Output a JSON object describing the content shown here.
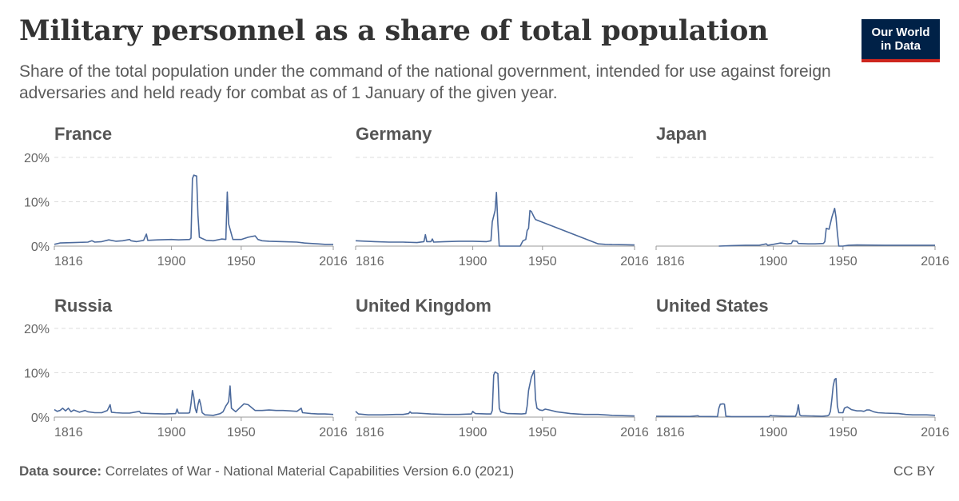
{
  "header": {
    "title": "Military personnel as a share of total population",
    "subtitle": "Share of the total population under the command of the national government, intended for use against foreign adversaries and held ready for combat as of 1 January of the given year."
  },
  "logo": {
    "line1": "Our World",
    "line2": "in Data"
  },
  "footer": {
    "source_label": "Data source:",
    "source_text": "Correlates of War - National Material Capabilities Version 6.0 (2021)",
    "license": "CC BY"
  },
  "colors": {
    "line": "#4c6a9c",
    "grid": "#dddddd",
    "axis": "#999999",
    "logo_bg": "#002147",
    "logo_accent": "#ce261e"
  },
  "chart_data": {
    "type": "line",
    "xlim": [
      1816,
      2016
    ],
    "ylim": [
      0,
      20
    ],
    "x_ticks": [
      "1816",
      "1900",
      "1950",
      "2016"
    ],
    "y_ticks": [
      "0%",
      "10%",
      "20%"
    ],
    "grid": true,
    "panels": [
      {
        "name": "France",
        "points": [
          [
            1816,
            0.4
          ],
          [
            1820,
            0.7
          ],
          [
            1830,
            0.8
          ],
          [
            1840,
            0.9
          ],
          [
            1843,
            1.2
          ],
          [
            1845,
            0.9
          ],
          [
            1850,
            1.0
          ],
          [
            1855,
            1.4
          ],
          [
            1860,
            1.1
          ],
          [
            1865,
            1.2
          ],
          [
            1870,
            1.5
          ],
          [
            1871,
            1.2
          ],
          [
            1875,
            1.0
          ],
          [
            1880,
            1.3
          ],
          [
            1882,
            2.7
          ],
          [
            1883,
            1.3
          ],
          [
            1890,
            1.4
          ],
          [
            1900,
            1.5
          ],
          [
            1905,
            1.4
          ],
          [
            1913,
            1.5
          ],
          [
            1914,
            1.8
          ],
          [
            1915,
            15.2
          ],
          [
            1916,
            16.0
          ],
          [
            1918,
            15.8
          ],
          [
            1919,
            7.0
          ],
          [
            1920,
            2.0
          ],
          [
            1925,
            1.3
          ],
          [
            1930,
            1.2
          ],
          [
            1936,
            1.6
          ],
          [
            1939,
            1.5
          ],
          [
            1940,
            12.2
          ],
          [
            1941,
            5.0
          ],
          [
            1944,
            1.5
          ],
          [
            1950,
            1.5
          ],
          [
            1955,
            2.0
          ],
          [
            1960,
            2.3
          ],
          [
            1962,
            1.5
          ],
          [
            1965,
            1.2
          ],
          [
            1970,
            1.1
          ],
          [
            1980,
            1.0
          ],
          [
            1990,
            0.9
          ],
          [
            1995,
            0.7
          ],
          [
            2000,
            0.6
          ],
          [
            2005,
            0.5
          ],
          [
            2010,
            0.4
          ],
          [
            2016,
            0.4
          ]
        ]
      },
      {
        "name": "Germany",
        "points": [
          [
            1816,
            1.2
          ],
          [
            1830,
            1.0
          ],
          [
            1840,
            0.9
          ],
          [
            1850,
            0.9
          ],
          [
            1860,
            0.8
          ],
          [
            1865,
            1.0
          ],
          [
            1866,
            2.6
          ],
          [
            1867,
            1.0
          ],
          [
            1870,
            1.0
          ],
          [
            1871,
            1.6
          ],
          [
            1872,
            0.9
          ],
          [
            1880,
            1.0
          ],
          [
            1890,
            1.1
          ],
          [
            1900,
            1.1
          ],
          [
            1910,
            1.0
          ],
          [
            1913,
            1.2
          ],
          [
            1914,
            5.5
          ],
          [
            1916,
            8.0
          ],
          [
            1917,
            12.1
          ],
          [
            1918,
            5.0
          ],
          [
            1919,
            0.0
          ],
          [
            1934,
            0.0
          ],
          [
            1936,
            1.2
          ],
          [
            1938,
            1.5
          ],
          [
            1939,
            3.5
          ],
          [
            1940,
            4.0
          ],
          [
            1941,
            8.0
          ],
          [
            1942,
            7.8
          ],
          [
            1944,
            6.5
          ],
          [
            1945,
            6.0
          ],
          [
            1990,
            0.5
          ],
          [
            1995,
            0.4
          ],
          [
            2000,
            0.35
          ],
          [
            2010,
            0.3
          ],
          [
            2016,
            0.25
          ]
        ]
      },
      {
        "name": "Japan",
        "points": [
          [
            1861,
            0.0
          ],
          [
            1870,
            0.1
          ],
          [
            1880,
            0.2
          ],
          [
            1890,
            0.2
          ],
          [
            1895,
            0.5
          ],
          [
            1896,
            0.2
          ],
          [
            1900,
            0.4
          ],
          [
            1905,
            0.7
          ],
          [
            1910,
            0.5
          ],
          [
            1913,
            0.6
          ],
          [
            1914,
            1.2
          ],
          [
            1917,
            1.1
          ],
          [
            1918,
            0.6
          ],
          [
            1925,
            0.5
          ],
          [
            1930,
            0.5
          ],
          [
            1936,
            0.6
          ],
          [
            1937,
            1.0
          ],
          [
            1938,
            4.0
          ],
          [
            1940,
            3.8
          ],
          [
            1942,
            6.5
          ],
          [
            1944,
            8.5
          ],
          [
            1945,
            6.5
          ],
          [
            1946,
            3.0
          ],
          [
            1947,
            0.0
          ],
          [
            1950,
            0.0
          ],
          [
            1954,
            0.2
          ],
          [
            1960,
            0.25
          ],
          [
            1980,
            0.2
          ],
          [
            2000,
            0.2
          ],
          [
            2016,
            0.2
          ]
        ]
      },
      {
        "name": "Russia",
        "points": [
          [
            1816,
            1.7
          ],
          [
            1818,
            1.3
          ],
          [
            1820,
            1.5
          ],
          [
            1822,
            2.0
          ],
          [
            1824,
            1.4
          ],
          [
            1826,
            2.0
          ],
          [
            1828,
            1.2
          ],
          [
            1830,
            1.6
          ],
          [
            1834,
            1.1
          ],
          [
            1838,
            1.5
          ],
          [
            1840,
            1.2
          ],
          [
            1845,
            1.0
          ],
          [
            1850,
            1.0
          ],
          [
            1854,
            1.5
          ],
          [
            1856,
            2.8
          ],
          [
            1857,
            1.1
          ],
          [
            1860,
            1.0
          ],
          [
            1865,
            0.9
          ],
          [
            1870,
            0.9
          ],
          [
            1877,
            1.3
          ],
          [
            1878,
            0.9
          ],
          [
            1885,
            0.8
          ],
          [
            1895,
            0.7
          ],
          [
            1903,
            0.8
          ],
          [
            1904,
            1.8
          ],
          [
            1905,
            0.9
          ],
          [
            1912,
            0.9
          ],
          [
            1913,
            1.0
          ],
          [
            1914,
            3.0
          ],
          [
            1915,
            6.0
          ],
          [
            1916,
            4.5
          ],
          [
            1917,
            2.0
          ],
          [
            1918,
            1.0
          ],
          [
            1919,
            2.8
          ],
          [
            1920,
            4.0
          ],
          [
            1921,
            2.8
          ],
          [
            1922,
            1.0
          ],
          [
            1924,
            0.5
          ],
          [
            1930,
            0.4
          ],
          [
            1935,
            0.8
          ],
          [
            1937,
            1.2
          ],
          [
            1939,
            2.5
          ],
          [
            1940,
            3.0
          ],
          [
            1941,
            3.5
          ],
          [
            1942,
            7.0
          ],
          [
            1943,
            2.0
          ],
          [
            1946,
            1.2
          ],
          [
            1950,
            2.4
          ],
          [
            1952,
            3.0
          ],
          [
            1955,
            2.8
          ],
          [
            1958,
            2.0
          ],
          [
            1960,
            1.5
          ],
          [
            1965,
            1.5
          ],
          [
            1970,
            1.6
          ],
          [
            1975,
            1.5
          ],
          [
            1980,
            1.5
          ],
          [
            1985,
            1.4
          ],
          [
            1990,
            1.3
          ],
          [
            1993,
            2.0
          ],
          [
            1994,
            1.0
          ],
          [
            2000,
            0.8
          ],
          [
            2005,
            0.7
          ],
          [
            2010,
            0.7
          ],
          [
            2016,
            0.6
          ]
        ]
      },
      {
        "name": "United Kingdom",
        "points": [
          [
            1816,
            1.3
          ],
          [
            1818,
            0.7
          ],
          [
            1825,
            0.5
          ],
          [
            1835,
            0.5
          ],
          [
            1845,
            0.6
          ],
          [
            1850,
            0.6
          ],
          [
            1854,
            0.8
          ],
          [
            1855,
            1.2
          ],
          [
            1856,
            0.9
          ],
          [
            1860,
            0.9
          ],
          [
            1870,
            0.7
          ],
          [
            1880,
            0.6
          ],
          [
            1890,
            0.6
          ],
          [
            1899,
            0.7
          ],
          [
            1900,
            1.3
          ],
          [
            1901,
            1.0
          ],
          [
            1902,
            0.8
          ],
          [
            1910,
            0.7
          ],
          [
            1913,
            0.7
          ],
          [
            1914,
            1.5
          ],
          [
            1915,
            9.5
          ],
          [
            1916,
            10.2
          ],
          [
            1917,
            10.0
          ],
          [
            1918,
            9.8
          ],
          [
            1919,
            2.0
          ],
          [
            1920,
            1.2
          ],
          [
            1925,
            0.8
          ],
          [
            1935,
            0.7
          ],
          [
            1938,
            0.8
          ],
          [
            1939,
            2.5
          ],
          [
            1940,
            6.0
          ],
          [
            1942,
            9.0
          ],
          [
            1944,
            10.5
          ],
          [
            1945,
            4.0
          ],
          [
            1946,
            2.0
          ],
          [
            1948,
            1.6
          ],
          [
            1950,
            1.5
          ],
          [
            1952,
            1.8
          ],
          [
            1955,
            1.6
          ],
          [
            1960,
            1.2
          ],
          [
            1970,
            0.8
          ],
          [
            1980,
            0.6
          ],
          [
            1990,
            0.6
          ],
          [
            2000,
            0.4
          ],
          [
            2010,
            0.3
          ],
          [
            2016,
            0.25
          ]
        ]
      },
      {
        "name": "United States",
        "points": [
          [
            1816,
            0.2
          ],
          [
            1840,
            0.15
          ],
          [
            1846,
            0.3
          ],
          [
            1847,
            0.15
          ],
          [
            1860,
            0.1
          ],
          [
            1861,
            2.0
          ],
          [
            1862,
            2.9
          ],
          [
            1864,
            3.0
          ],
          [
            1865,
            2.9
          ],
          [
            1866,
            0.2
          ],
          [
            1870,
            0.1
          ],
          [
            1897,
            0.1
          ],
          [
            1898,
            0.4
          ],
          [
            1899,
            0.3
          ],
          [
            1910,
            0.2
          ],
          [
            1916,
            0.2
          ],
          [
            1917,
            1.0
          ],
          [
            1918,
            2.8
          ],
          [
            1919,
            0.5
          ],
          [
            1920,
            0.3
          ],
          [
            1935,
            0.2
          ],
          [
            1939,
            0.3
          ],
          [
            1940,
            0.5
          ],
          [
            1941,
            1.3
          ],
          [
            1942,
            4.0
          ],
          [
            1943,
            7.0
          ],
          [
            1944,
            8.5
          ],
          [
            1945,
            8.7
          ],
          [
            1946,
            2.5
          ],
          [
            1947,
            1.0
          ],
          [
            1950,
            1.0
          ],
          [
            1951,
            2.0
          ],
          [
            1953,
            2.3
          ],
          [
            1956,
            1.7
          ],
          [
            1960,
            1.4
          ],
          [
            1963,
            1.4
          ],
          [
            1965,
            1.3
          ],
          [
            1967,
            1.6
          ],
          [
            1969,
            1.6
          ],
          [
            1972,
            1.2
          ],
          [
            1975,
            1.0
          ],
          [
            1980,
            0.9
          ],
          [
            1990,
            0.8
          ],
          [
            1995,
            0.6
          ],
          [
            2000,
            0.5
          ],
          [
            2010,
            0.5
          ],
          [
            2016,
            0.4
          ]
        ]
      }
    ]
  }
}
